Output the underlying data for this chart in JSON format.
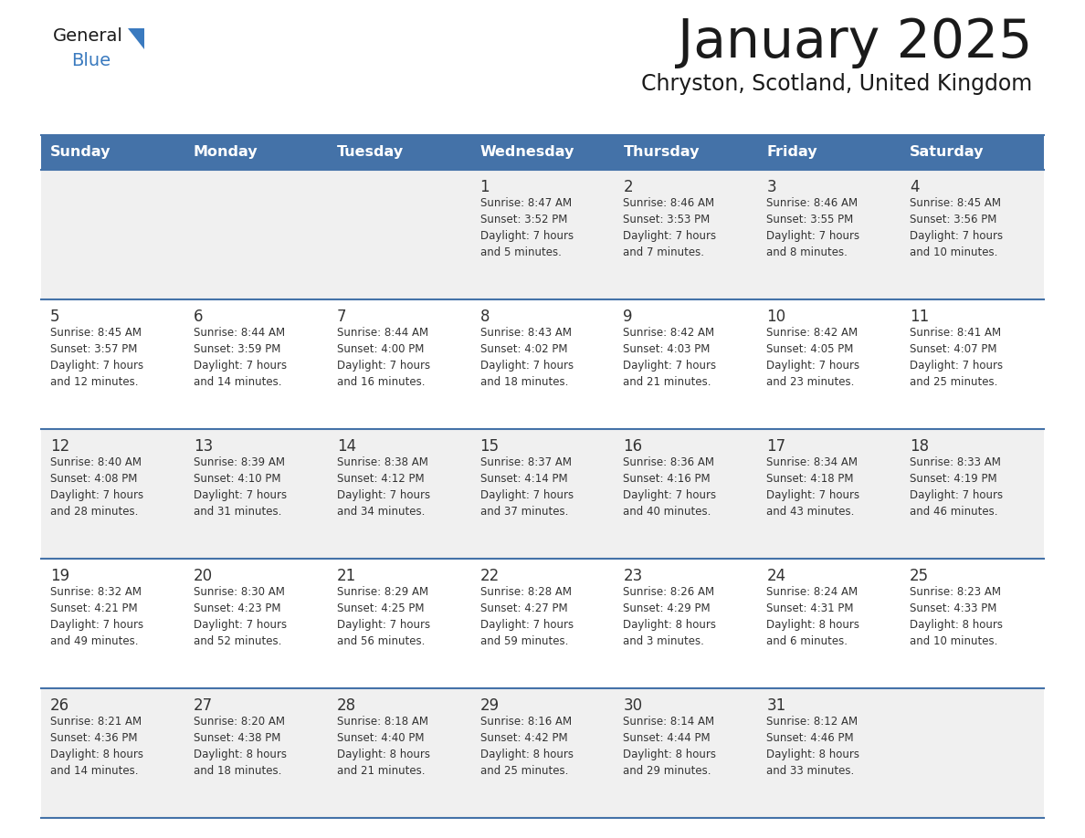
{
  "title": "January 2025",
  "subtitle": "Chryston, Scotland, United Kingdom",
  "days_of_week": [
    "Sunday",
    "Monday",
    "Tuesday",
    "Wednesday",
    "Thursday",
    "Friday",
    "Saturday"
  ],
  "header_bg": "#4472a8",
  "header_text_color": "#ffffff",
  "cell_bg_even": "#f0f0f0",
  "cell_bg_odd": "#ffffff",
  "separator_color": "#4472a8",
  "text_color": "#333333",
  "title_color": "#1a1a1a",
  "logo_general_color": "#1a1a1a",
  "logo_blue_color": "#3a7abf",
  "calendar_data": [
    [
      {
        "day": "",
        "info": ""
      },
      {
        "day": "",
        "info": ""
      },
      {
        "day": "",
        "info": ""
      },
      {
        "day": "1",
        "info": "Sunrise: 8:47 AM\nSunset: 3:52 PM\nDaylight: 7 hours\nand 5 minutes."
      },
      {
        "day": "2",
        "info": "Sunrise: 8:46 AM\nSunset: 3:53 PM\nDaylight: 7 hours\nand 7 minutes."
      },
      {
        "day": "3",
        "info": "Sunrise: 8:46 AM\nSunset: 3:55 PM\nDaylight: 7 hours\nand 8 minutes."
      },
      {
        "day": "4",
        "info": "Sunrise: 8:45 AM\nSunset: 3:56 PM\nDaylight: 7 hours\nand 10 minutes."
      }
    ],
    [
      {
        "day": "5",
        "info": "Sunrise: 8:45 AM\nSunset: 3:57 PM\nDaylight: 7 hours\nand 12 minutes."
      },
      {
        "day": "6",
        "info": "Sunrise: 8:44 AM\nSunset: 3:59 PM\nDaylight: 7 hours\nand 14 minutes."
      },
      {
        "day": "7",
        "info": "Sunrise: 8:44 AM\nSunset: 4:00 PM\nDaylight: 7 hours\nand 16 minutes."
      },
      {
        "day": "8",
        "info": "Sunrise: 8:43 AM\nSunset: 4:02 PM\nDaylight: 7 hours\nand 18 minutes."
      },
      {
        "day": "9",
        "info": "Sunrise: 8:42 AM\nSunset: 4:03 PM\nDaylight: 7 hours\nand 21 minutes."
      },
      {
        "day": "10",
        "info": "Sunrise: 8:42 AM\nSunset: 4:05 PM\nDaylight: 7 hours\nand 23 minutes."
      },
      {
        "day": "11",
        "info": "Sunrise: 8:41 AM\nSunset: 4:07 PM\nDaylight: 7 hours\nand 25 minutes."
      }
    ],
    [
      {
        "day": "12",
        "info": "Sunrise: 8:40 AM\nSunset: 4:08 PM\nDaylight: 7 hours\nand 28 minutes."
      },
      {
        "day": "13",
        "info": "Sunrise: 8:39 AM\nSunset: 4:10 PM\nDaylight: 7 hours\nand 31 minutes."
      },
      {
        "day": "14",
        "info": "Sunrise: 8:38 AM\nSunset: 4:12 PM\nDaylight: 7 hours\nand 34 minutes."
      },
      {
        "day": "15",
        "info": "Sunrise: 8:37 AM\nSunset: 4:14 PM\nDaylight: 7 hours\nand 37 minutes."
      },
      {
        "day": "16",
        "info": "Sunrise: 8:36 AM\nSunset: 4:16 PM\nDaylight: 7 hours\nand 40 minutes."
      },
      {
        "day": "17",
        "info": "Sunrise: 8:34 AM\nSunset: 4:18 PM\nDaylight: 7 hours\nand 43 minutes."
      },
      {
        "day": "18",
        "info": "Sunrise: 8:33 AM\nSunset: 4:19 PM\nDaylight: 7 hours\nand 46 minutes."
      }
    ],
    [
      {
        "day": "19",
        "info": "Sunrise: 8:32 AM\nSunset: 4:21 PM\nDaylight: 7 hours\nand 49 minutes."
      },
      {
        "day": "20",
        "info": "Sunrise: 8:30 AM\nSunset: 4:23 PM\nDaylight: 7 hours\nand 52 minutes."
      },
      {
        "day": "21",
        "info": "Sunrise: 8:29 AM\nSunset: 4:25 PM\nDaylight: 7 hours\nand 56 minutes."
      },
      {
        "day": "22",
        "info": "Sunrise: 8:28 AM\nSunset: 4:27 PM\nDaylight: 7 hours\nand 59 minutes."
      },
      {
        "day": "23",
        "info": "Sunrise: 8:26 AM\nSunset: 4:29 PM\nDaylight: 8 hours\nand 3 minutes."
      },
      {
        "day": "24",
        "info": "Sunrise: 8:24 AM\nSunset: 4:31 PM\nDaylight: 8 hours\nand 6 minutes."
      },
      {
        "day": "25",
        "info": "Sunrise: 8:23 AM\nSunset: 4:33 PM\nDaylight: 8 hours\nand 10 minutes."
      }
    ],
    [
      {
        "day": "26",
        "info": "Sunrise: 8:21 AM\nSunset: 4:36 PM\nDaylight: 8 hours\nand 14 minutes."
      },
      {
        "day": "27",
        "info": "Sunrise: 8:20 AM\nSunset: 4:38 PM\nDaylight: 8 hours\nand 18 minutes."
      },
      {
        "day": "28",
        "info": "Sunrise: 8:18 AM\nSunset: 4:40 PM\nDaylight: 8 hours\nand 21 minutes."
      },
      {
        "day": "29",
        "info": "Sunrise: 8:16 AM\nSunset: 4:42 PM\nDaylight: 8 hours\nand 25 minutes."
      },
      {
        "day": "30",
        "info": "Sunrise: 8:14 AM\nSunset: 4:44 PM\nDaylight: 8 hours\nand 29 minutes."
      },
      {
        "day": "31",
        "info": "Sunrise: 8:12 AM\nSunset: 4:46 PM\nDaylight: 8 hours\nand 33 minutes."
      },
      {
        "day": "",
        "info": ""
      }
    ]
  ]
}
